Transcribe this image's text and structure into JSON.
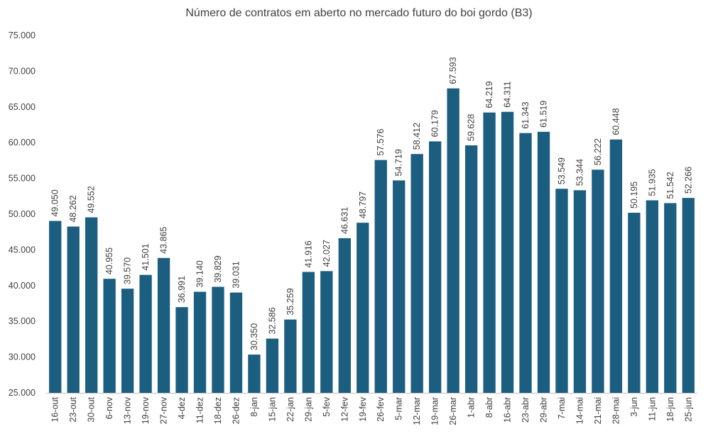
{
  "chart_data": {
    "type": "bar",
    "title": "Número de contratos em aberto no mercado futuro do boi gordo (B3)",
    "xlabel": "",
    "ylabel": "",
    "ylim": [
      25000,
      75000
    ],
    "grid": false,
    "legend": "none",
    "y_ticks": [
      "25.000",
      "30.000",
      "35.000",
      "40.000",
      "45.000",
      "50.000",
      "55.000",
      "60.000",
      "65.000",
      "70.000",
      "75.000"
    ],
    "y_tick_values": [
      25000,
      30000,
      35000,
      40000,
      45000,
      50000,
      55000,
      60000,
      65000,
      70000,
      75000
    ],
    "categories": [
      "16-out",
      "23-out",
      "30-out",
      "6-nov",
      "13-nov",
      "19-nov",
      "27-nov",
      "4-dez",
      "11-dez",
      "18-dez",
      "26-dez",
      "8-jan",
      "15-jan",
      "22-jan",
      "29-jan",
      "5-fev",
      "12-fev",
      "19-fev",
      "26-fev",
      "5-mar",
      "12-mar",
      "19-mar",
      "26-mar",
      "1-abr",
      "8-abr",
      "16-abr",
      "23-abr",
      "29-abr",
      "7-mai",
      "14-mai",
      "21-mai",
      "28-mai",
      "3-jun",
      "11-jun",
      "18-jun",
      "25-jun"
    ],
    "values": [
      49050,
      48262,
      49552,
      40955,
      39570,
      41501,
      43865,
      36991,
      39140,
      39829,
      39031,
      30350,
      32586,
      35259,
      41916,
      42027,
      46631,
      48797,
      57576,
      54719,
      58412,
      60179,
      67593,
      59628,
      64219,
      64311,
      61343,
      61519,
      53549,
      53344,
      56222,
      60448,
      50195,
      51935,
      51542,
      52266
    ],
    "value_labels": [
      "49.050",
      "48.262",
      "49.552",
      "40.955",
      "39.570",
      "41.501",
      "43.865",
      "36.991",
      "39.140",
      "39.829",
      "39.031",
      "30.350",
      "32.586",
      "35.259",
      "41.916",
      "42.027",
      "46.631",
      "48.797",
      "57.576",
      "54.719",
      "58.412",
      "60.179",
      "67.593",
      "59.628",
      "64.219",
      "64.311",
      "61.343",
      "61.519",
      "53.549",
      "53.344",
      "56.222",
      "60.448",
      "50.195",
      "51.935",
      "51.542",
      "52.266"
    ],
    "colors": {
      "bar": "#1b5e80",
      "axis": "#bfbfbf",
      "text": "#404040"
    }
  }
}
